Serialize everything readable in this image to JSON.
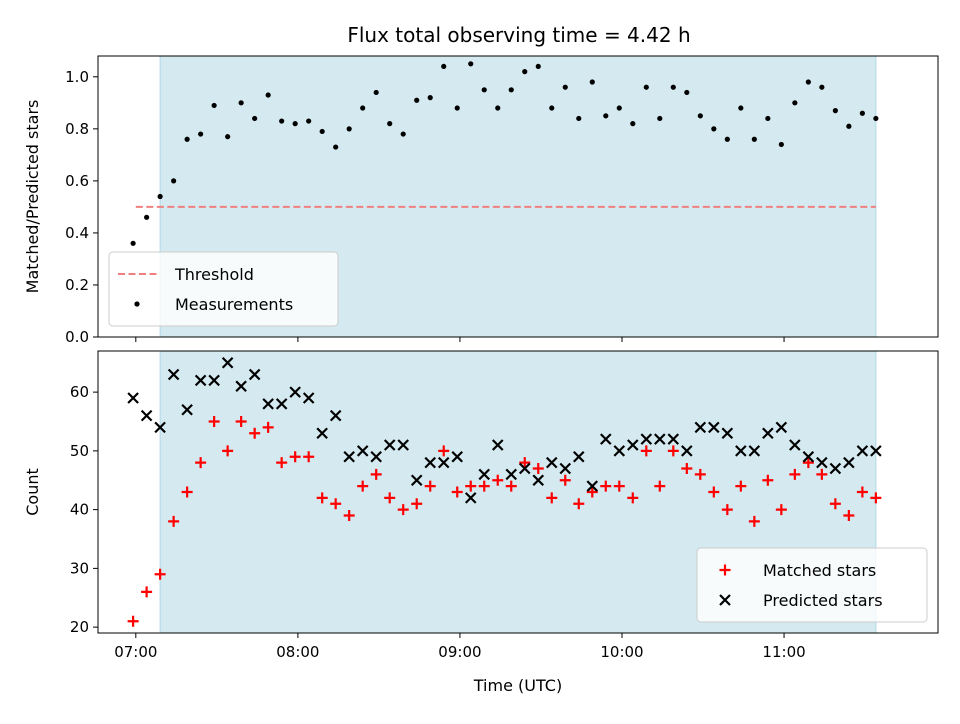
{
  "figure": {
    "title": "Flux total observing time = 4.42 h"
  },
  "chart_data": [
    {
      "type": "scatter",
      "panel": "top",
      "ylabel": "Matched/Predicted stars",
      "ylim": [
        0.0,
        1.08
      ],
      "yticks": [
        "0.0",
        "0.2",
        "0.4",
        "0.6",
        "0.8",
        "1.0"
      ],
      "xlim": [
        "06:46",
        "11:57"
      ],
      "xticks": [],
      "grid": false,
      "legend_position": "lower-left",
      "shaded_region": {
        "x": [
          "07:09",
          "11:34"
        ],
        "color": "#d4eaf0"
      },
      "threshold": {
        "name": "Threshold",
        "value": 0.5,
        "x": [
          "07:00",
          "11:34"
        ],
        "color": "#f08080"
      },
      "series": [
        {
          "name": "Measurements",
          "color": "#000000",
          "marker": "dot",
          "x": [
            "06:59",
            "07:04",
            "07:09",
            "07:14",
            "07:19",
            "07:24",
            "07:29",
            "07:34",
            "07:39",
            "07:44",
            "07:49",
            "07:54",
            "07:59",
            "08:04",
            "08:09",
            "08:14",
            "08:19",
            "08:24",
            "08:29",
            "08:34",
            "08:39",
            "08:44",
            "08:49",
            "08:54",
            "08:59",
            "09:04",
            "09:09",
            "09:14",
            "09:19",
            "09:24",
            "09:29",
            "09:34",
            "09:39",
            "09:44",
            "09:49",
            "09:54",
            "09:59",
            "10:04",
            "10:09",
            "10:14",
            "10:19",
            "10:24",
            "10:29",
            "10:34",
            "10:39",
            "10:44",
            "10:49",
            "10:54",
            "10:59",
            "11:04",
            "11:09",
            "11:14",
            "11:19",
            "11:24",
            "11:29",
            "11:34"
          ],
          "y": [
            0.36,
            0.46,
            0.54,
            0.6,
            0.76,
            0.78,
            0.89,
            0.77,
            0.9,
            0.84,
            0.93,
            0.83,
            0.82,
            0.83,
            0.79,
            0.73,
            0.8,
            0.88,
            0.94,
            0.82,
            0.78,
            0.91,
            0.92,
            1.04,
            0.88,
            1.05,
            0.95,
            0.88,
            0.95,
            1.02,
            1.04,
            0.88,
            0.96,
            0.84,
            0.98,
            0.85,
            0.88,
            0.82,
            0.96,
            0.84,
            0.96,
            0.94,
            0.85,
            0.8,
            0.76,
            0.88,
            0.76,
            0.84,
            0.74,
            0.9,
            0.98,
            0.96,
            0.87,
            0.81,
            0.86,
            0.84
          ]
        }
      ]
    },
    {
      "type": "scatter",
      "panel": "bottom",
      "xlabel": "Time (UTC)",
      "ylabel": "Count",
      "ylim": [
        19,
        67
      ],
      "yticks": [
        "20",
        "30",
        "40",
        "50",
        "60"
      ],
      "xlim": [
        "06:46",
        "11:57"
      ],
      "xticks": [
        "07:00",
        "08:00",
        "09:00",
        "10:00",
        "11:00"
      ],
      "grid": false,
      "legend_position": "lower-right",
      "shaded_region": {
        "x": [
          "07:09",
          "11:34"
        ],
        "color": "#d4eaf0"
      },
      "series": [
        {
          "name": "Matched stars",
          "color": "#ff0000",
          "marker": "plus",
          "x": [
            "06:59",
            "07:04",
            "07:09",
            "07:14",
            "07:19",
            "07:24",
            "07:29",
            "07:34",
            "07:39",
            "07:44",
            "07:49",
            "07:54",
            "07:59",
            "08:04",
            "08:09",
            "08:14",
            "08:19",
            "08:24",
            "08:29",
            "08:34",
            "08:39",
            "08:44",
            "08:49",
            "08:54",
            "08:59",
            "09:04",
            "09:09",
            "09:14",
            "09:19",
            "09:24",
            "09:29",
            "09:34",
            "09:39",
            "09:44",
            "09:49",
            "09:54",
            "09:59",
            "10:04",
            "10:09",
            "10:14",
            "10:19",
            "10:24",
            "10:29",
            "10:34",
            "10:39",
            "10:44",
            "10:49",
            "10:54",
            "10:59",
            "11:04",
            "11:09",
            "11:14",
            "11:19",
            "11:24",
            "11:29",
            "11:34"
          ],
          "y": [
            21,
            26,
            29,
            38,
            43,
            48,
            55,
            50,
            55,
            53,
            54,
            48,
            49,
            49,
            42,
            41,
            39,
            44,
            46,
            42,
            40,
            41,
            44,
            50,
            43,
            44,
            44,
            45,
            44,
            48,
            47,
            42,
            45,
            41,
            43,
            44,
            44,
            42,
            50,
            44,
            50,
            47,
            46,
            43,
            40,
            44,
            38,
            45,
            40,
            46,
            48,
            46,
            41,
            39,
            43,
            42
          ]
        },
        {
          "name": "Predicted stars",
          "color": "#000000",
          "marker": "cross",
          "x": [
            "06:59",
            "07:04",
            "07:09",
            "07:14",
            "07:19",
            "07:24",
            "07:29",
            "07:34",
            "07:39",
            "07:44",
            "07:49",
            "07:54",
            "07:59",
            "08:04",
            "08:09",
            "08:14",
            "08:19",
            "08:24",
            "08:29",
            "08:34",
            "08:39",
            "08:44",
            "08:49",
            "08:54",
            "08:59",
            "09:04",
            "09:09",
            "09:14",
            "09:19",
            "09:24",
            "09:29",
            "09:34",
            "09:39",
            "09:44",
            "09:49",
            "09:54",
            "09:59",
            "10:04",
            "10:09",
            "10:14",
            "10:19",
            "10:24",
            "10:29",
            "10:34",
            "10:39",
            "10:44",
            "10:49",
            "10:54",
            "10:59",
            "11:04",
            "11:09",
            "11:14",
            "11:19",
            "11:24",
            "11:29",
            "11:34"
          ],
          "y": [
            59,
            56,
            54,
            63,
            57,
            62,
            62,
            65,
            61,
            63,
            58,
            58,
            60,
            59,
            53,
            56,
            49,
            50,
            49,
            51,
            51,
            45,
            48,
            48,
            49,
            42,
            46,
            51,
            46,
            47,
            45,
            48,
            47,
            49,
            44,
            52,
            50,
            51,
            52,
            52,
            52,
            50,
            54,
            54,
            53,
            50,
            50,
            53,
            54,
            51,
            49,
            48,
            47,
            48,
            50,
            50
          ]
        }
      ]
    }
  ]
}
